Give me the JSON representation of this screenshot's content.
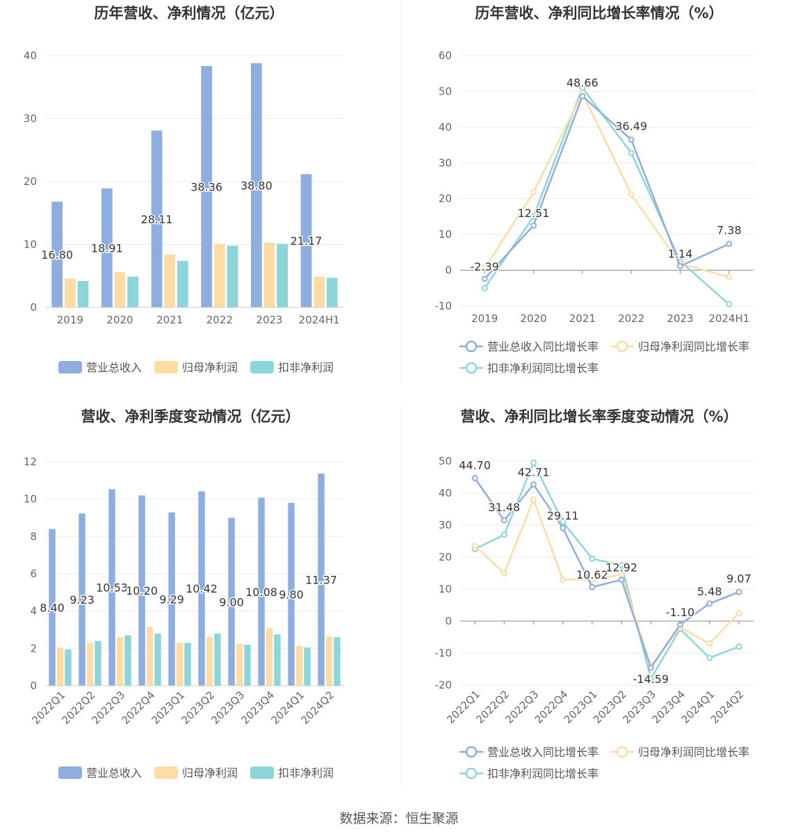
{
  "source_text": "数据来源：恒生聚源",
  "colors": {
    "revenue": "#8eaee0",
    "net_profit": "#ffdca6",
    "deducted_profit": "#8cd6da",
    "grid": "#e6e9f0",
    "axis_text": "#666666",
    "title": "#333333"
  },
  "chart_data": [
    {
      "type": "bar",
      "title": "历年营收、净利情况（亿元）",
      "categories": [
        "2019",
        "2020",
        "2021",
        "2022",
        "2023",
        "2024H1"
      ],
      "ylim": [
        0,
        40
      ],
      "yticks": [
        0,
        10,
        20,
        30,
        40
      ],
      "legend_position": "bottom",
      "series": [
        {
          "name": "营业总收入",
          "values": [
            16.8,
            18.91,
            28.11,
            38.36,
            38.8,
            21.17
          ],
          "labels": [
            "16.80",
            "18.91",
            "28.11",
            "38.36",
            "38.80",
            "21.17"
          ]
        },
        {
          "name": "归母净利润",
          "values": [
            4.6,
            5.6,
            8.4,
            10.1,
            10.3,
            4.9
          ]
        },
        {
          "name": "扣非净利润",
          "values": [
            4.2,
            4.9,
            7.4,
            9.8,
            10.1,
            4.7
          ]
        }
      ]
    },
    {
      "type": "line",
      "title": "历年营收、净利同比增长率情况（%）",
      "categories": [
        "2019",
        "2020",
        "2021",
        "2022",
        "2023",
        "2024H1"
      ],
      "ylim": [
        -10,
        60
      ],
      "yticks": [
        -10,
        0,
        10,
        20,
        30,
        40,
        50,
        60
      ],
      "legend_position": "bottom",
      "series": [
        {
          "name": "营业总收入同比增长率",
          "values": [
            -2.39,
            12.51,
            48.66,
            36.49,
            1.14,
            7.38
          ],
          "labels": [
            "-2.39",
            "12.51",
            "48.66",
            "36.49",
            "1.14",
            "7.38"
          ]
        },
        {
          "name": "归母净利润同比增长率",
          "values": [
            0.5,
            21.8,
            49.5,
            21.2,
            1.8,
            -1.9
          ]
        },
        {
          "name": "扣非净利润同比增长率",
          "values": [
            -5.0,
            15.0,
            51.0,
            32.8,
            2.5,
            -9.5
          ]
        }
      ]
    },
    {
      "type": "bar",
      "title": "营收、净利季度变动情况（亿元）",
      "categories": [
        "2022Q1",
        "2022Q2",
        "2022Q3",
        "2022Q4",
        "2023Q1",
        "2023Q2",
        "2023Q3",
        "2023Q4",
        "2024Q1",
        "2024Q2"
      ],
      "ylim": [
        0,
        12
      ],
      "yticks": [
        0,
        2,
        4,
        6,
        8,
        10,
        12
      ],
      "legend_position": "bottom",
      "series": [
        {
          "name": "营业总收入",
          "values": [
            8.4,
            9.23,
            10.53,
            10.2,
            9.29,
            10.42,
            9.0,
            10.08,
            9.8,
            11.37
          ],
          "labels": [
            "8.40",
            "9.23",
            "10.53",
            "10.20",
            "9.29",
            "10.42",
            "9.00",
            "10.08",
            "9.80",
            "11.37"
          ]
        },
        {
          "name": "归母净利润",
          "values": [
            2.05,
            2.3,
            2.6,
            3.15,
            2.3,
            2.6,
            2.25,
            3.1,
            2.15,
            2.65
          ]
        },
        {
          "name": "扣非净利润",
          "values": [
            1.95,
            2.4,
            2.7,
            2.8,
            2.3,
            2.8,
            2.2,
            2.75,
            2.05,
            2.6
          ]
        }
      ]
    },
    {
      "type": "line",
      "title": "营收、净利同比增长率季度变动情况（%）",
      "categories": [
        "2022Q1",
        "2022Q2",
        "2022Q3",
        "2022Q4",
        "2023Q1",
        "2023Q2",
        "2023Q3",
        "2023Q4",
        "2024Q1",
        "2024Q2"
      ],
      "ylim": [
        -20,
        50
      ],
      "yticks": [
        -20,
        -10,
        0,
        10,
        20,
        30,
        40,
        50
      ],
      "legend_position": "bottom",
      "series": [
        {
          "name": "营业总收入同比增长率",
          "values": [
            44.7,
            31.48,
            42.71,
            29.11,
            10.62,
            12.92,
            -14.59,
            -1.1,
            5.48,
            9.07
          ],
          "labels": [
            "44.70",
            "31.48",
            "42.71",
            "29.11",
            "10.62",
            "12.92",
            "-14.59",
            "-1.10",
            "5.48",
            "9.07"
          ]
        },
        {
          "name": "归母净利润同比增长率",
          "values": [
            23.5,
            15.0,
            38.0,
            13.0,
            13.0,
            14.5,
            -14.0,
            -2.0,
            -7.0,
            2.5
          ]
        },
        {
          "name": "扣非净利润同比增长率",
          "values": [
            22.5,
            27.0,
            49.5,
            31.0,
            19.5,
            17.5,
            -18.0,
            -2.5,
            -11.5,
            -8.0
          ]
        }
      ]
    }
  ]
}
